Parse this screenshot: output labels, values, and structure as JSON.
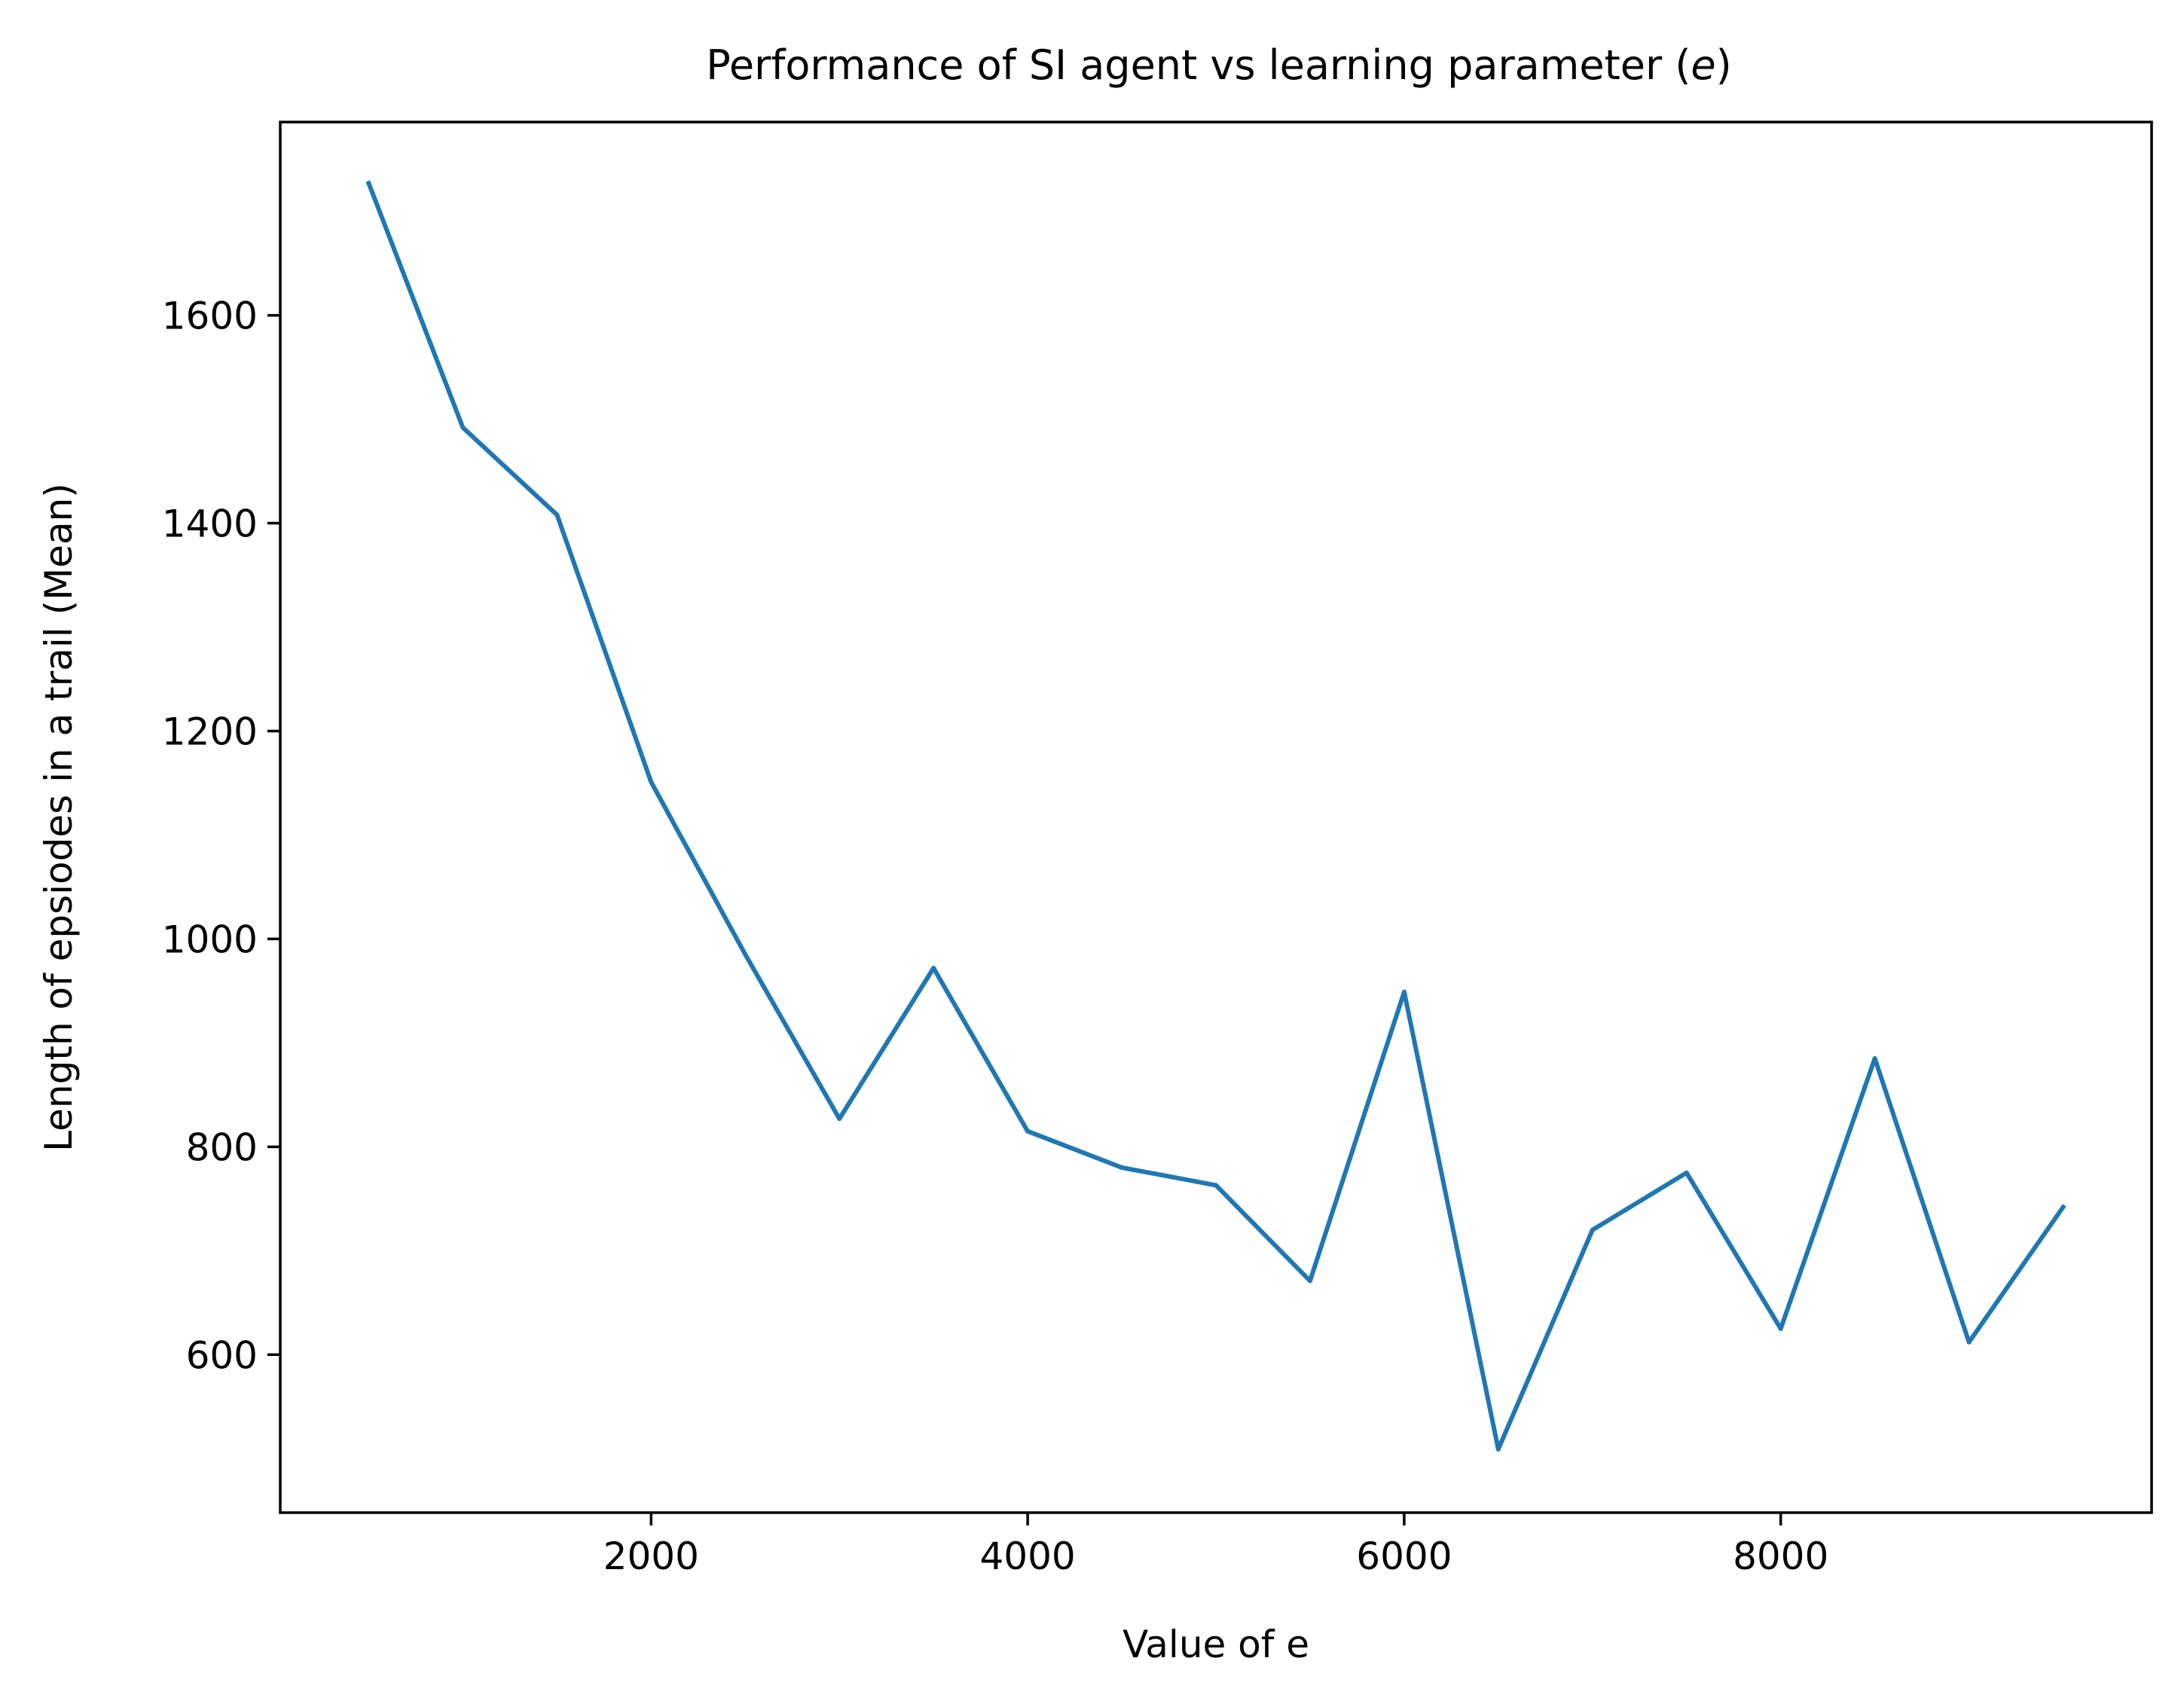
{
  "chart_data": {
    "type": "line",
    "title": "Performance of SI agent vs learning parameter",
    "title_math": "e",
    "xlabel": "Value of e",
    "ylabel": "Length of epsiodes in a trail (Mean)",
    "xlim": [
      30,
      9970
    ],
    "ylim": [
      448,
      1786
    ],
    "x_ticks": [
      2000,
      4000,
      6000,
      8000
    ],
    "x_tick_labels": [
      "2000",
      "4000",
      "6000",
      "8000"
    ],
    "y_ticks": [
      600,
      800,
      1000,
      1200,
      1400,
      1600
    ],
    "y_tick_labels": [
      "600",
      "800",
      "1000",
      "1200",
      "1400",
      "1600"
    ],
    "grid": false,
    "series": [
      {
        "color": "#1f77b4",
        "x": [
          500,
          1000,
          1500,
          2000,
          2500,
          3000,
          3500,
          4000,
          4500,
          5000,
          5500,
          6000,
          6500,
          7000,
          7500,
          8000,
          8500,
          9000,
          9500
        ],
        "y": [
          1727,
          1492,
          1408,
          1151,
          985,
          827,
          972,
          815,
          780,
          763,
          671,
          949,
          509,
          720,
          775,
          625,
          885,
          612,
          742
        ]
      }
    ]
  }
}
